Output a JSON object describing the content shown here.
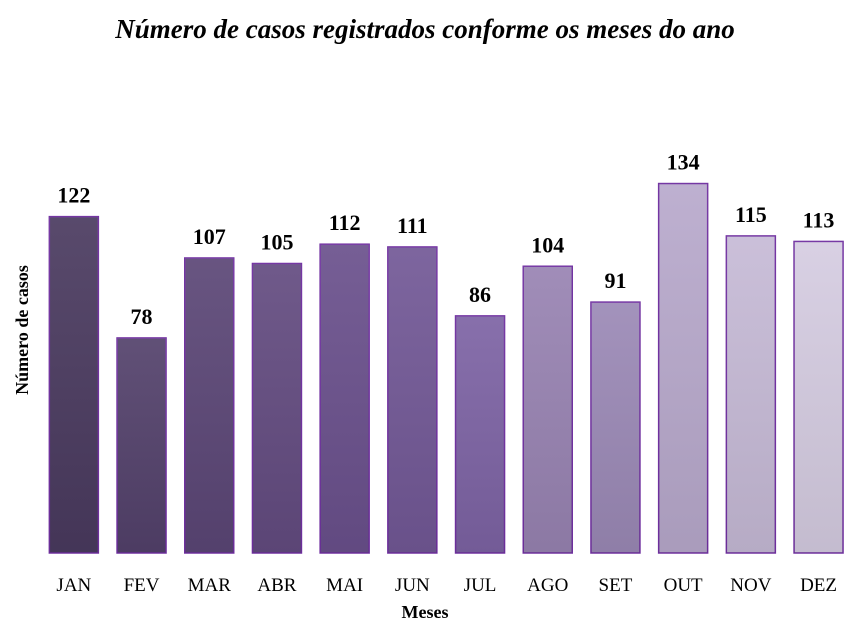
{
  "chart_data": {
    "type": "bar",
    "title": "Número de casos registrados conforme os meses do ano",
    "x_label": "Meses",
    "y_label": "Número de casos",
    "categories": [
      "JAN",
      "FEV",
      "MAR",
      "ABR",
      "MAI",
      "JUN",
      "JUL",
      "AGO",
      "SET",
      "OUT",
      "NOV",
      "DEZ"
    ],
    "values": [
      122,
      78,
      107,
      105,
      112,
      111,
      86,
      104,
      91,
      134,
      115,
      113
    ],
    "colors": [
      "#4a3a5f",
      "#53416b",
      "#5b4676",
      "#634b80",
      "#6a508c",
      "#725896",
      "#7d63a4",
      "#9883b2",
      "#9b89b6",
      "#b8a9cc",
      "#c6bad6",
      "#d5cce1"
    ],
    "edge_color": "#7030a0",
    "ylim": [
      0,
      140
    ]
  }
}
